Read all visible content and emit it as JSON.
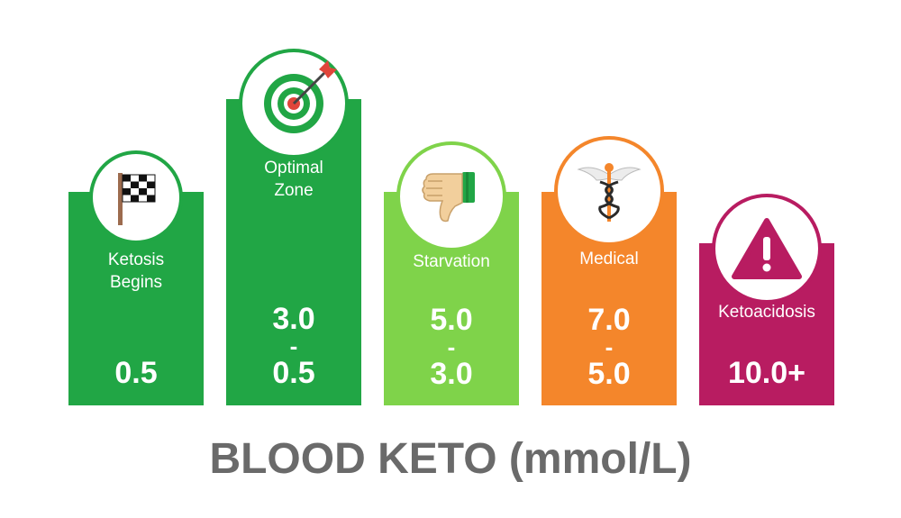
{
  "chart_data": {
    "type": "bar",
    "title": "BLOOD KETO (mmol/L)",
    "categories": [
      "Ketosis Begins",
      "Optimal Zone",
      "Starvation",
      "Medical",
      "Ketoacidosis"
    ],
    "ranges": [
      {
        "label": "Ketosis Begins",
        "line1": "Ketosis",
        "line2": "Begins",
        "value_text": "0.5",
        "upper": "",
        "lower": "0.5",
        "color": "#21a645",
        "icon": "checkered-flag-icon"
      },
      {
        "label": "Optimal Zone",
        "line1": "Optimal",
        "line2": "Zone",
        "value_text": "3.0 - 0.5",
        "upper": "3.0",
        "lower": "0.5",
        "color": "#21a645",
        "icon": "target-icon"
      },
      {
        "label": "Starvation",
        "line1": "Starvation",
        "line2": "",
        "value_text": "5.0 - 3.0",
        "upper": "5.0",
        "lower": "3.0",
        "color": "#7fd34a",
        "icon": "thumbs-down-icon"
      },
      {
        "label": "Medical",
        "line1": "Medical",
        "line2": "",
        "value_text": "7.0 - 5.0",
        "upper": "7.0",
        "lower": "5.0",
        "color": "#f4862b",
        "icon": "caduceus-icon"
      },
      {
        "label": "Ketoacidosis",
        "line1": "Ketoacidosis",
        "line2": "",
        "value_text": "10.0+",
        "upper": "",
        "lower": "10.0+",
        "color": "#b81c61",
        "icon": "warning-icon"
      }
    ],
    "xlabel": "",
    "ylabel": "mmol/L"
  },
  "footer": {
    "title": "BLOOD KETO (mmol/L)"
  },
  "dash": "-"
}
